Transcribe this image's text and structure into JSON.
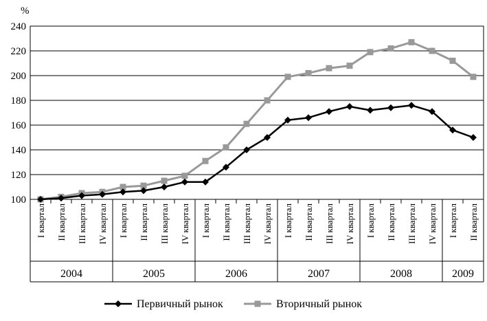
{
  "chart_data": {
    "type": "line",
    "unit_label": "%",
    "ylim": [
      100,
      240
    ],
    "yticks": [
      100,
      120,
      140,
      160,
      180,
      200,
      220,
      240
    ],
    "grid": true,
    "legend_position": "bottom",
    "years": [
      {
        "label": "2004",
        "quarters": 4
      },
      {
        "label": "2005",
        "quarters": 4
      },
      {
        "label": "2006",
        "quarters": 4
      },
      {
        "label": "2007",
        "quarters": 4
      },
      {
        "label": "2008",
        "quarters": 4
      },
      {
        "label": "2009",
        "quarters": 2
      }
    ],
    "categories": [
      "I квартал",
      "II квартал",
      "III квартал",
      "IV квартал",
      "I квартал",
      "II квартал",
      "III квартал",
      "IV квартал",
      "I квартал",
      "II квартал",
      "III квартал",
      "IV квартал",
      "I квартал",
      "II квартал",
      "III квартал",
      "IV квартал",
      "I квартал",
      "II квартал",
      "III квартал",
      "IV квартал",
      "I квартал",
      "II квартал"
    ],
    "series": [
      {
        "name": "Первичный рынок",
        "color": "#000000",
        "marker": "diamond",
        "values": [
          100,
          101,
          103,
          104,
          106,
          107,
          110,
          114,
          114,
          126,
          140,
          150,
          164,
          166,
          171,
          175,
          172,
          174,
          176,
          171,
          156,
          150
        ]
      },
      {
        "name": "Вторичный рынок",
        "color": "#999999",
        "marker": "square",
        "values": [
          100,
          102,
          105,
          106,
          110,
          111,
          115,
          119,
          131,
          142,
          161,
          180,
          199,
          202,
          206,
          208,
          219,
          222,
          227,
          220,
          212,
          199
        ]
      }
    ]
  }
}
